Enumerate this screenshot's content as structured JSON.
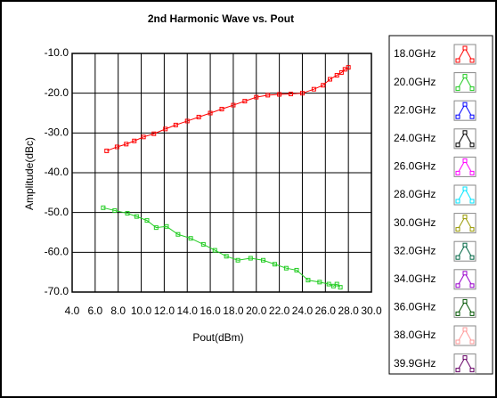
{
  "chart_data": {
    "type": "line",
    "title": "2nd Harmonic Wave vs. Pout",
    "xlabel": "Pout(dBm)",
    "ylabel": "Amplitude(dBc)",
    "xlim": [
      4,
      30
    ],
    "ylim": [
      -70,
      -10
    ],
    "grid": true,
    "xticks": [
      {
        "value": 4,
        "label": "4.0"
      },
      {
        "value": 6,
        "label": "6.0"
      },
      {
        "value": 8,
        "label": "8.0"
      },
      {
        "value": 10,
        "label": "10.0"
      },
      {
        "value": 12,
        "label": "12.0"
      },
      {
        "value": 14,
        "label": "14.0"
      },
      {
        "value": 16,
        "label": "16.0"
      },
      {
        "value": 18,
        "label": "18.0"
      },
      {
        "value": 20,
        "label": "20.0"
      },
      {
        "value": 22,
        "label": "22.0"
      },
      {
        "value": 24,
        "label": "24.0"
      },
      {
        "value": 26,
        "label": "26.0"
      },
      {
        "value": 28,
        "label": "28.0"
      },
      {
        "value": 30,
        "label": "30.0"
      }
    ],
    "yticks": [
      {
        "value": -10,
        "label": "-10.0"
      },
      {
        "value": -20,
        "label": "-20.0"
      },
      {
        "value": -30,
        "label": "-30.0"
      },
      {
        "value": -40,
        "label": "-40.0"
      },
      {
        "value": -50,
        "label": "-50.0"
      },
      {
        "value": -60,
        "label": "-60.0"
      },
      {
        "value": -70,
        "label": "-70.0"
      }
    ],
    "series": [
      {
        "name": "18.0GHz",
        "color": "#ff0000",
        "x": [
          7.0,
          7.9,
          8.7,
          9.4,
          10.2,
          11.1,
          12.1,
          13.0,
          14.0,
          15.0,
          16.0,
          17.0,
          18.0,
          19.0,
          20.0,
          21.0,
          22.0,
          23.0,
          24.0,
          25.0,
          25.8,
          26.4,
          27.0,
          27.4,
          27.7,
          28.0
        ],
        "values": [
          -34.5,
          -33.5,
          -32.8,
          -32.0,
          -31.0,
          -30.2,
          -29.0,
          -28.0,
          -27.0,
          -26.0,
          -25.0,
          -24.0,
          -23.0,
          -22.0,
          -21.0,
          -20.5,
          -20.3,
          -20.2,
          -20.0,
          -19.0,
          -18.0,
          -16.5,
          -15.5,
          -14.8,
          -14.0,
          -13.5
        ]
      },
      {
        "name": "20.0GHz",
        "color": "#22cc22",
        "x": [
          6.7,
          7.7,
          8.8,
          9.6,
          10.5,
          11.3,
          12.2,
          13.2,
          14.3,
          15.4,
          16.4,
          17.4,
          18.4,
          19.5,
          20.6,
          21.6,
          22.6,
          23.5,
          24.5,
          25.5,
          26.3,
          26.7,
          27.0,
          27.3
        ],
        "values": [
          -48.8,
          -49.5,
          -50.2,
          -51.0,
          -52.0,
          -53.8,
          -53.5,
          -55.5,
          -56.5,
          -58.0,
          -59.5,
          -61.0,
          -62.0,
          -61.5,
          -62.0,
          -63.0,
          -64.0,
          -64.5,
          -67.0,
          -67.5,
          -68.0,
          -68.5,
          -68.0,
          -68.8
        ]
      },
      {
        "name": "22.0GHz",
        "color": "#0000ff",
        "x": [],
        "values": []
      },
      {
        "name": "24.0GHz",
        "color": "#000000",
        "x": [],
        "values": []
      },
      {
        "name": "26.0GHz",
        "color": "#ff00ff",
        "x": [],
        "values": []
      },
      {
        "name": "28.0GHz",
        "color": "#00e5ff",
        "x": [],
        "values": []
      },
      {
        "name": "30.0GHz",
        "color": "#999900",
        "x": [],
        "values": []
      },
      {
        "name": "32.0GHz",
        "color": "#006644",
        "x": [],
        "values": []
      },
      {
        "name": "34.0GHz",
        "color": "#9900cc",
        "x": [],
        "values": []
      },
      {
        "name": "36.0GHz",
        "color": "#005500",
        "x": [],
        "values": []
      },
      {
        "name": "38.0GHz",
        "color": "#ff9999",
        "x": [],
        "values": []
      },
      {
        "name": "39.9GHz",
        "color": "#660066",
        "x": [],
        "values": []
      }
    ]
  }
}
